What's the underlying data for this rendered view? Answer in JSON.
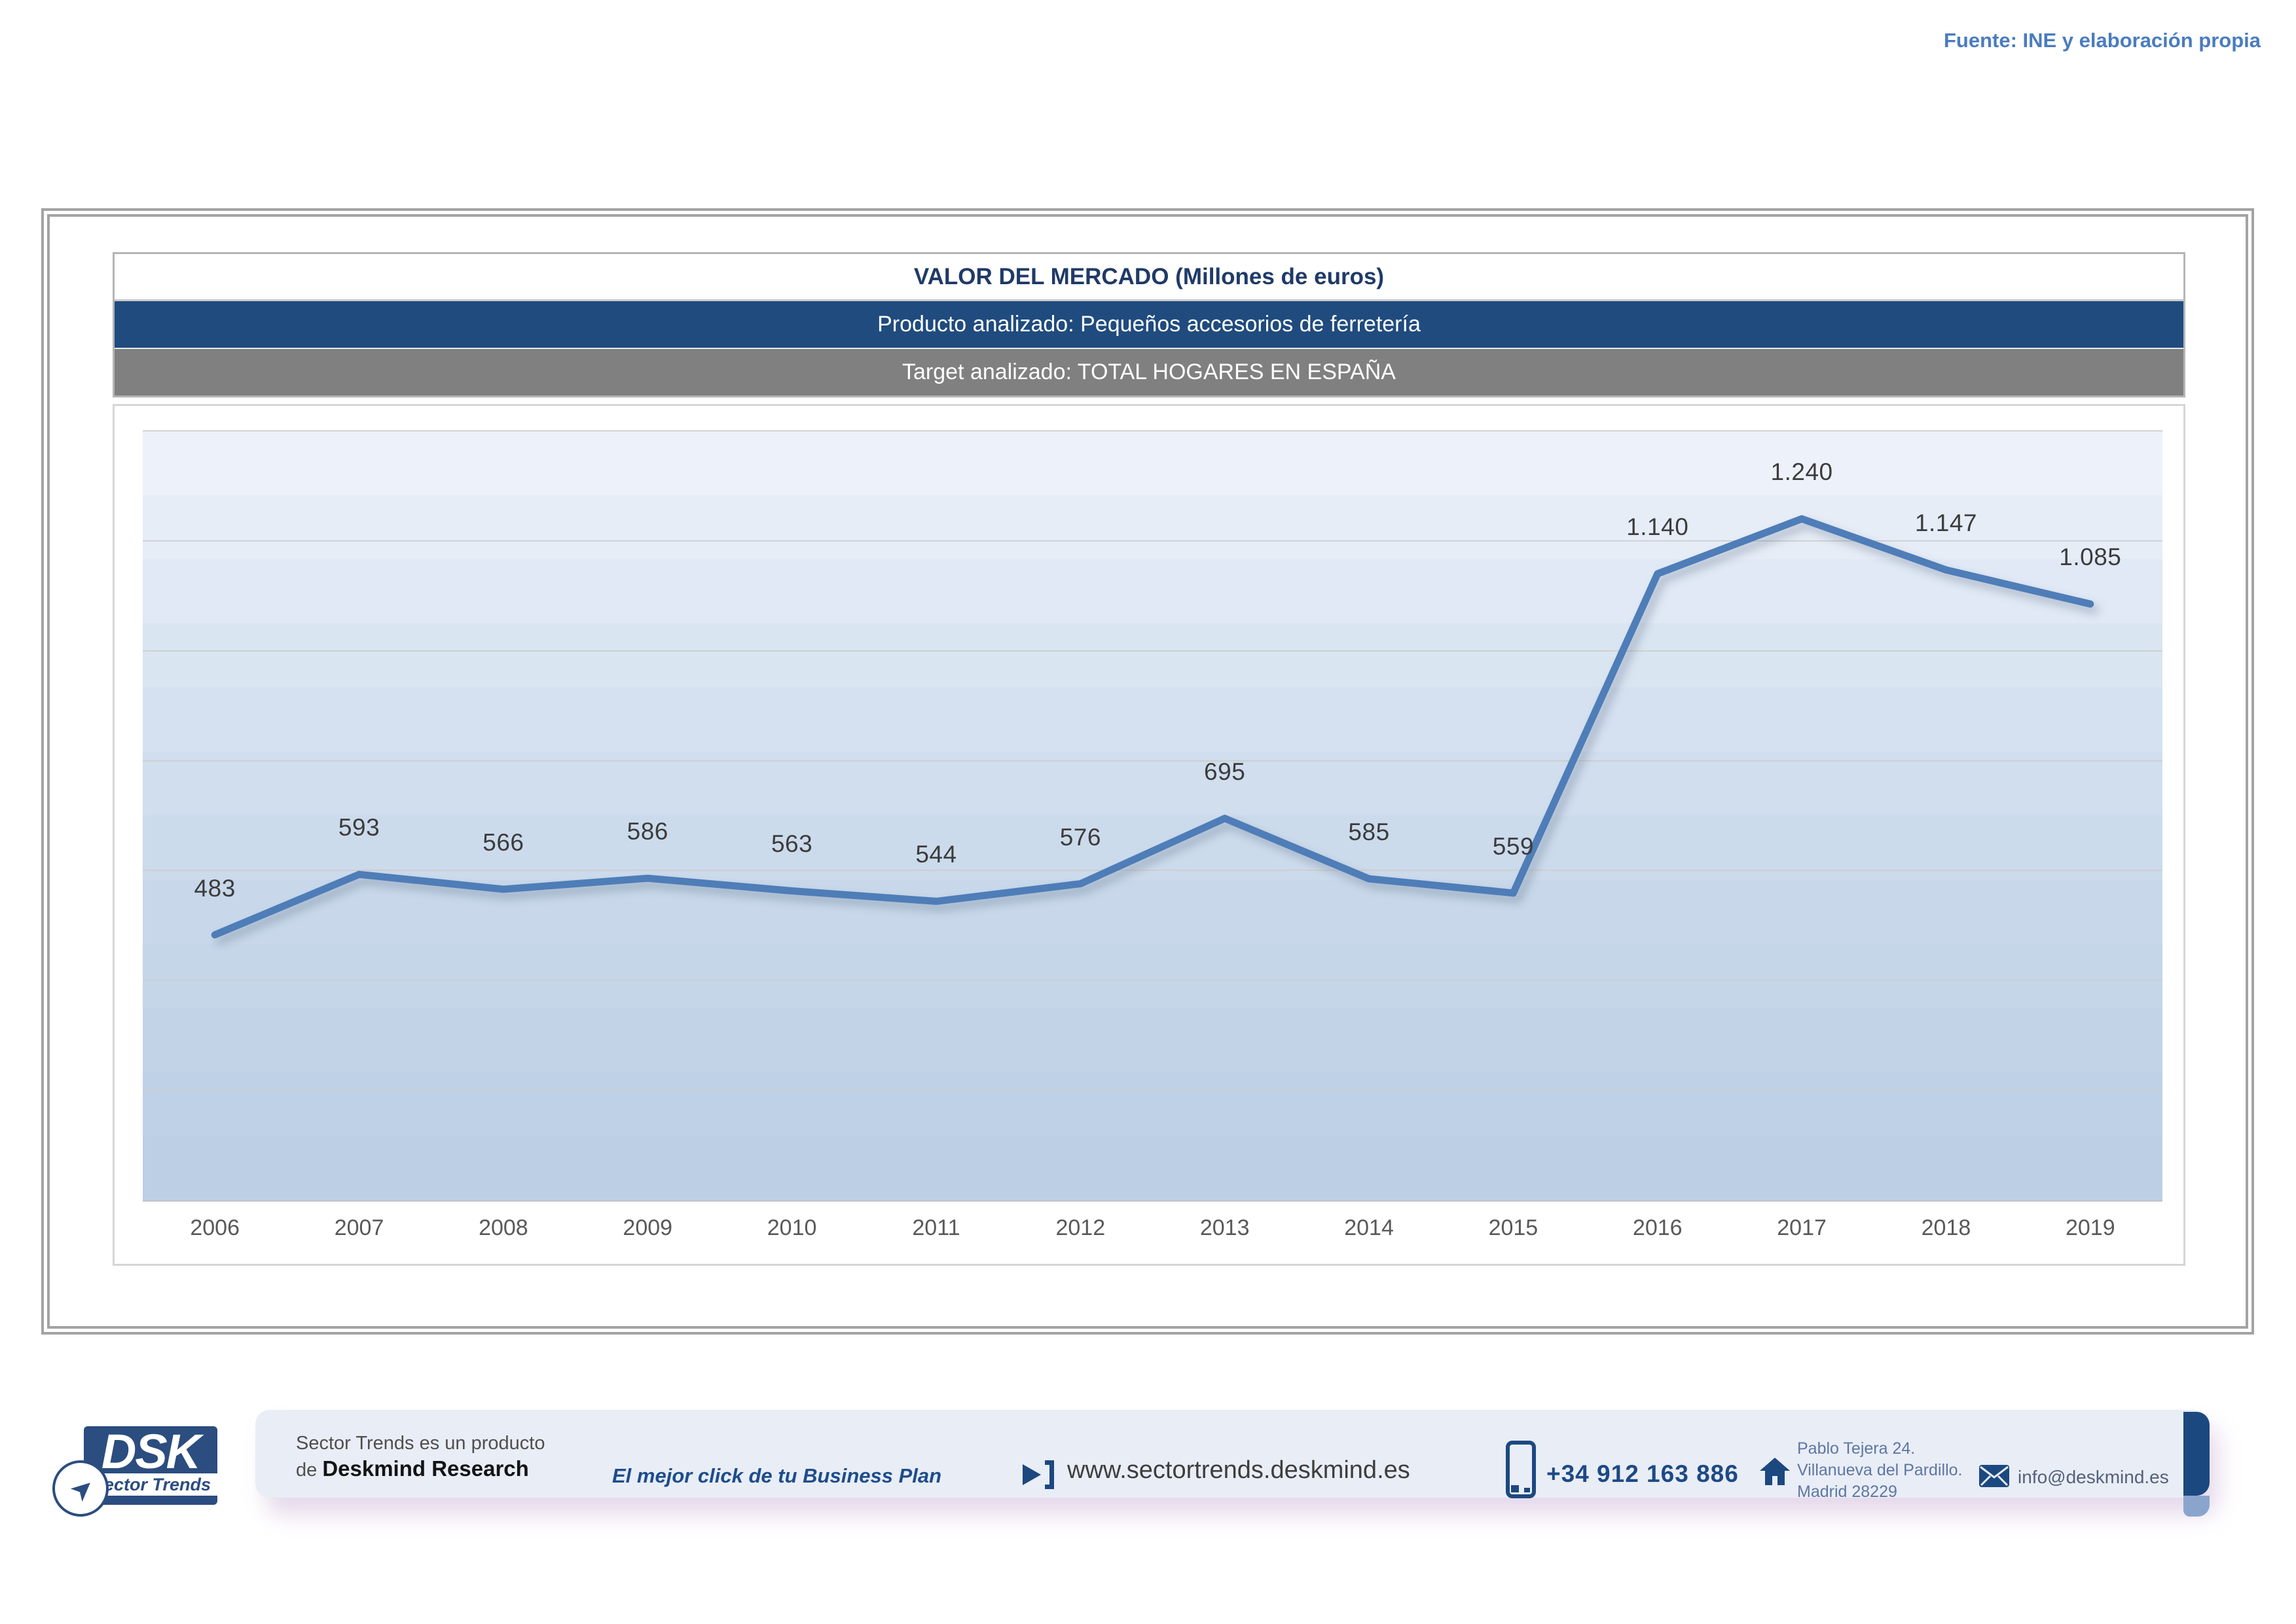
{
  "source_note": "Fuente: INE y elaboración propia",
  "header": {
    "title": "VALOR DEL MERCADO (Millones de euros)",
    "product_row": "Producto analizado: Pequeños accesorios de ferretería",
    "target_row": "Target analizado: TOTAL HOGARES EN ESPAÑA"
  },
  "chart_data": {
    "type": "line",
    "title": "VALOR DEL MERCADO (Millones de euros)",
    "categories": [
      "2006",
      "2007",
      "2008",
      "2009",
      "2010",
      "2011",
      "2012",
      "2013",
      "2014",
      "2015",
      "2016",
      "2017",
      "2018",
      "2019"
    ],
    "values": [
      483,
      593,
      566,
      586,
      563,
      544,
      576,
      695,
      585,
      559,
      1140,
      1240,
      1147,
      1085
    ],
    "point_labels": [
      "483",
      "593",
      "566",
      "586",
      "563",
      "544",
      "576",
      "695",
      "585",
      "559",
      "1.140",
      "1.240",
      "1.147",
      "1.085"
    ],
    "xlabel": "",
    "ylabel": "",
    "ylim": [
      0,
      1400
    ],
    "gridline_interval": 200,
    "grid": true,
    "legend_position": "none",
    "line_color": "#4e7db8"
  },
  "footer": {
    "logo": {
      "acronym": "DSK",
      "brand": "Sector Trends"
    },
    "product_line1": "Sector Trends es un producto",
    "product_line2_prefix": "de ",
    "product_line2_brand": "Deskmind Research",
    "slogan": "El mejor click de tu Business Plan",
    "website": "www.sectortrends.deskmind.es",
    "phone": "+34 912 163 886",
    "address_line1": "Pablo Tejera 24.",
    "address_line2": "Villanueva del Pardillo.",
    "address_line3": "Madrid 28229",
    "email": "info@deskmind.es"
  },
  "colors": {
    "accent_navy": "#1f4b7e",
    "bar_gray": "#808080",
    "line_blue": "#4e7db8",
    "source_blue": "#4a7cbf"
  }
}
